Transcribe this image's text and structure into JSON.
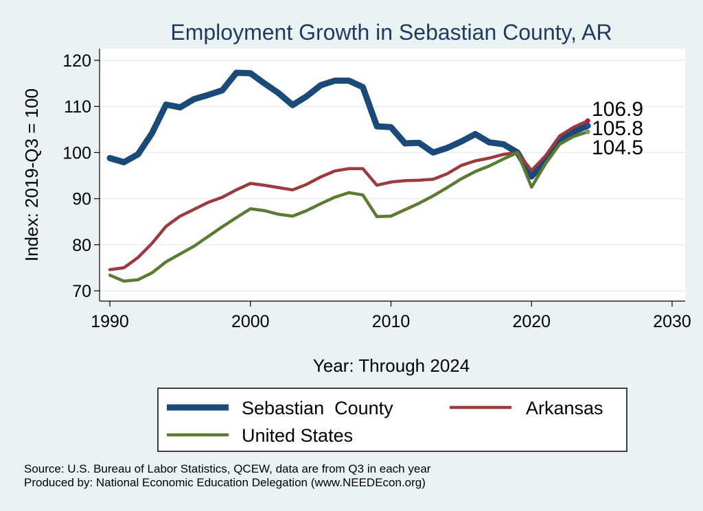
{
  "chart_data": {
    "type": "line",
    "title": "Employment Growth in Sebastian County, AR",
    "xlabel": "Year: Through 2024",
    "ylabel": "Index: 2019-Q3 = 100",
    "xlim": [
      1990,
      2030
    ],
    "ylim": [
      68,
      122
    ],
    "xticks": [
      1990,
      2000,
      2010,
      2020,
      2030
    ],
    "yticks": [
      70,
      80,
      90,
      100,
      110,
      120
    ],
    "grid": true,
    "legend_position": "bottom",
    "series": [
      {
        "name": "Sebastian  County",
        "color": "#1b4a78",
        "x": [
          1990,
          1991,
          1992,
          1993,
          1994,
          1995,
          1996,
          1997,
          1998,
          1999,
          2000,
          2001,
          2002,
          2003,
          2004,
          2005,
          2006,
          2007,
          2008,
          2009,
          2010,
          2011,
          2012,
          2013,
          2014,
          2015,
          2016,
          2017,
          2018,
          2019,
          2020,
          2021,
          2022,
          2023,
          2024
        ],
        "values": [
          98.8,
          97.9,
          99.6,
          104.2,
          110.4,
          109.8,
          111.6,
          112.5,
          113.5,
          117.3,
          117.2,
          115.0,
          112.9,
          110.3,
          112.2,
          114.6,
          115.6,
          115.6,
          114.2,
          105.7,
          105.5,
          102.0,
          102.1,
          100.0,
          101.0,
          102.4,
          104.0,
          102.2,
          101.8,
          100.0,
          94.8,
          98.2,
          102.6,
          104.5,
          105.8
        ],
        "end_label": "105.8"
      },
      {
        "name": "Arkansas",
        "color": "#9b3a3f",
        "x": [
          1990,
          1991,
          1992,
          1993,
          1994,
          1995,
          1996,
          1997,
          1998,
          1999,
          2000,
          2001,
          2002,
          2003,
          2004,
          2005,
          2006,
          2007,
          2008,
          2009,
          2010,
          2011,
          2012,
          2013,
          2014,
          2015,
          2016,
          2017,
          2018,
          2019,
          2020,
          2021,
          2022,
          2023,
          2024
        ],
        "values": [
          74.6,
          75.0,
          77.2,
          80.3,
          84.0,
          86.2,
          87.7,
          89.2,
          90.3,
          91.9,
          93.3,
          92.9,
          92.4,
          91.9,
          93.1,
          94.7,
          96.0,
          96.5,
          96.5,
          92.9,
          93.6,
          93.9,
          94.0,
          94.2,
          95.4,
          97.2,
          98.2,
          98.8,
          99.6,
          100.0,
          96.1,
          99.3,
          103.6,
          105.5,
          106.9
        ],
        "end_label": "106.9"
      },
      {
        "name": "United States",
        "color": "#5b7a32",
        "x": [
          1990,
          1991,
          1992,
          1993,
          1994,
          1995,
          1996,
          1997,
          1998,
          1999,
          2000,
          2001,
          2002,
          2003,
          2004,
          2005,
          2006,
          2007,
          2008,
          2009,
          2010,
          2011,
          2012,
          2013,
          2014,
          2015,
          2016,
          2017,
          2018,
          2019,
          2020,
          2021,
          2022,
          2023,
          2024
        ],
        "values": [
          73.4,
          72.1,
          72.4,
          73.9,
          76.3,
          78.0,
          79.7,
          81.8,
          83.9,
          85.9,
          87.8,
          87.4,
          86.6,
          86.2,
          87.4,
          88.9,
          90.3,
          91.3,
          90.8,
          86.1,
          86.2,
          87.6,
          89.0,
          90.6,
          92.4,
          94.3,
          95.9,
          97.1,
          98.6,
          100.0,
          92.5,
          97.6,
          101.8,
          103.5,
          104.5
        ],
        "end_label": "104.5"
      }
    ],
    "source_lines": [
      "Source: U.S. Bureau of Labor Statistics, QCEW, data are from Q3 in each year",
      "Produced by: National Economic Education Delegation (www.NEEDEcon.org)"
    ]
  }
}
